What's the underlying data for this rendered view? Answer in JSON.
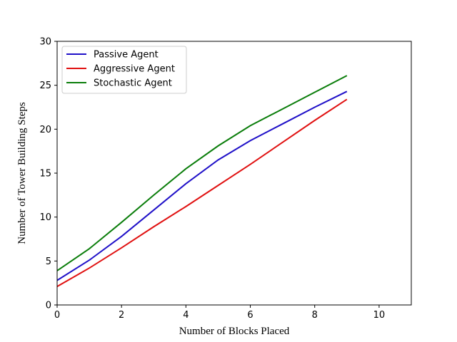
{
  "chart_data": {
    "type": "line",
    "title": "",
    "xlabel": "Number of Blocks Placed",
    "ylabel": "Number of Tower Building Steps",
    "xlim": [
      0,
      11
    ],
    "ylim": [
      0,
      30
    ],
    "xticks": [
      0,
      2,
      4,
      6,
      8,
      10
    ],
    "yticks": [
      0,
      5,
      10,
      15,
      20,
      25,
      30
    ],
    "grid": false,
    "legend_position": "top-left",
    "x": [
      0,
      1,
      2,
      3,
      4,
      5,
      6,
      7,
      8,
      9
    ],
    "series": [
      {
        "name": "Passive Agent",
        "color": "#1f10c8",
        "values": [
          2.8,
          5.1,
          7.8,
          10.8,
          13.8,
          16.5,
          18.7,
          20.6,
          22.5,
          24.3
        ]
      },
      {
        "name": "Aggressive Agent",
        "color": "#e01010",
        "values": [
          2.1,
          4.2,
          6.5,
          8.9,
          11.2,
          13.6,
          16.0,
          18.5,
          21.0,
          23.4
        ]
      },
      {
        "name": "Stochastic Agent",
        "color": "#0a7d0a",
        "values": [
          3.9,
          6.4,
          9.4,
          12.5,
          15.5,
          18.1,
          20.4,
          22.3,
          24.2,
          26.1
        ]
      }
    ]
  }
}
